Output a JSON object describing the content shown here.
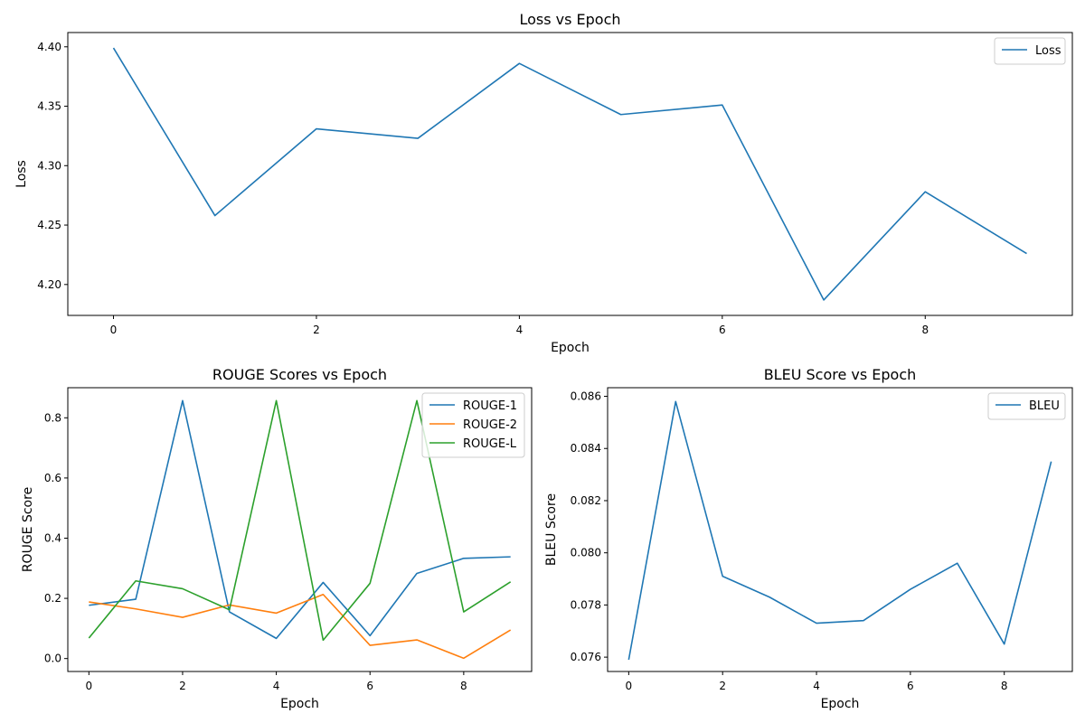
{
  "chart_data": [
    {
      "type": "line",
      "title": "Loss vs Epoch",
      "xlabel": "Epoch",
      "ylabel": "Loss",
      "xlim": [
        -0.45,
        9.45
      ],
      "ylim": [
        4.174,
        4.412
      ],
      "xticks": [
        0,
        2,
        4,
        6,
        8
      ],
      "yticks": [
        4.2,
        4.25,
        4.3,
        4.35,
        4.4
      ],
      "ytick_labels": [
        "4.20",
        "4.25",
        "4.30",
        "4.35",
        "4.40"
      ],
      "grid": false,
      "legend": "top-right",
      "x": [
        0,
        1,
        2,
        3,
        4,
        5,
        6,
        7,
        8,
        9
      ],
      "series": [
        {
          "name": "Loss",
          "color": "#1f77b4",
          "values": [
            4.399,
            4.258,
            4.331,
            4.323,
            4.386,
            4.343,
            4.351,
            4.187,
            4.278,
            4.226
          ]
        }
      ]
    },
    {
      "type": "line",
      "title": "ROUGE Scores vs Epoch",
      "xlabel": "Epoch",
      "ylabel": "ROUGE Score",
      "xlim": [
        -0.45,
        9.45
      ],
      "ylim": [
        -0.043,
        0.9
      ],
      "xticks": [
        0,
        2,
        4,
        6,
        8
      ],
      "yticks": [
        0.0,
        0.2,
        0.4,
        0.6,
        0.8
      ],
      "ytick_labels": [
        "0.0",
        "0.2",
        "0.4",
        "0.6",
        "0.8"
      ],
      "grid": false,
      "legend": "top-right",
      "x": [
        0,
        1,
        2,
        3,
        4,
        5,
        6,
        7,
        8,
        9
      ],
      "series": [
        {
          "name": "ROUGE-1",
          "color": "#1f77b4",
          "values": [
            0.177,
            0.197,
            0.857,
            0.155,
            0.067,
            0.253,
            0.076,
            0.283,
            0.333,
            0.338
          ]
        },
        {
          "name": "ROUGE-2",
          "color": "#ff7f0e",
          "values": [
            0.188,
            0.165,
            0.137,
            0.178,
            0.151,
            0.213,
            0.044,
            0.062,
            0.001,
            0.095
          ]
        },
        {
          "name": "ROUGE-L",
          "color": "#2ca02c",
          "values": [
            0.068,
            0.258,
            0.232,
            0.162,
            0.857,
            0.061,
            0.25,
            0.857,
            0.155,
            0.255
          ]
        }
      ]
    },
    {
      "type": "line",
      "title": "BLEU Score vs Epoch",
      "xlabel": "Epoch",
      "ylabel": "BLEU Score",
      "xlim": [
        -0.45,
        9.45
      ],
      "ylim": [
        0.07545,
        0.08633
      ],
      "xticks": [
        0,
        2,
        4,
        6,
        8
      ],
      "yticks": [
        0.076,
        0.078,
        0.08,
        0.082,
        0.084,
        0.086
      ],
      "ytick_labels": [
        "0.076",
        "0.078",
        "0.080",
        "0.082",
        "0.084",
        "0.086"
      ],
      "grid": false,
      "legend": "top-right",
      "x": [
        0,
        1,
        2,
        3,
        4,
        5,
        6,
        7,
        8,
        9
      ],
      "series": [
        {
          "name": "BLEU",
          "color": "#1f77b4",
          "values": [
            0.0759,
            0.0858,
            0.0791,
            0.0783,
            0.0773,
            0.0774,
            0.0786,
            0.0796,
            0.0765,
            0.0835
          ]
        }
      ]
    }
  ]
}
